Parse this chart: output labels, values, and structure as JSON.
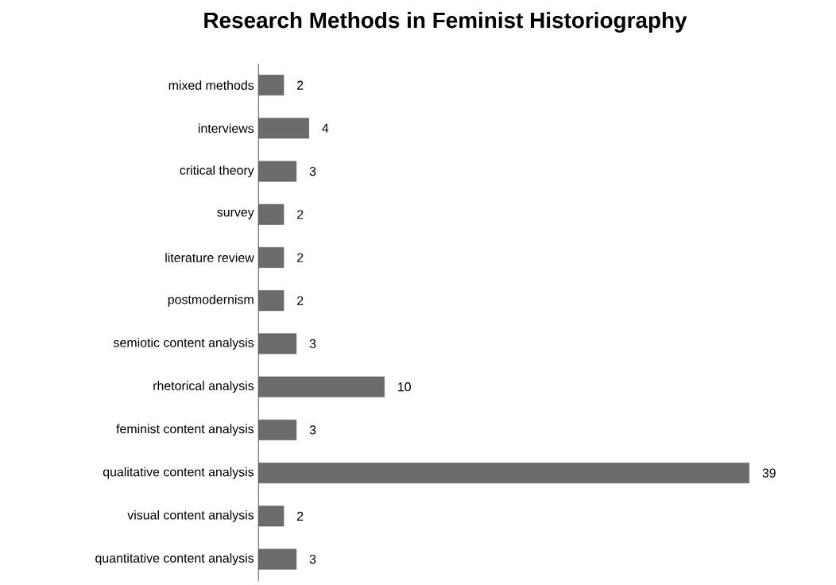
{
  "chart_data": {
    "type": "bar",
    "orientation": "horizontal",
    "title": "Research Methods in Feminist Historiography",
    "categories": [
      "mixed methods",
      "interviews",
      "critical theory",
      "survey",
      "literature review",
      "postmodernism",
      "semiotic content analysis",
      "rhetorical analysis",
      "feminist content analysis",
      "qualitative content analysis",
      "visual content analysis",
      "quantitative content analysis"
    ],
    "values": [
      2,
      4,
      3,
      2,
      2,
      2,
      3,
      10,
      3,
      39,
      2,
      3
    ],
    "color": "#6b6b6b",
    "data_labels": true
  }
}
